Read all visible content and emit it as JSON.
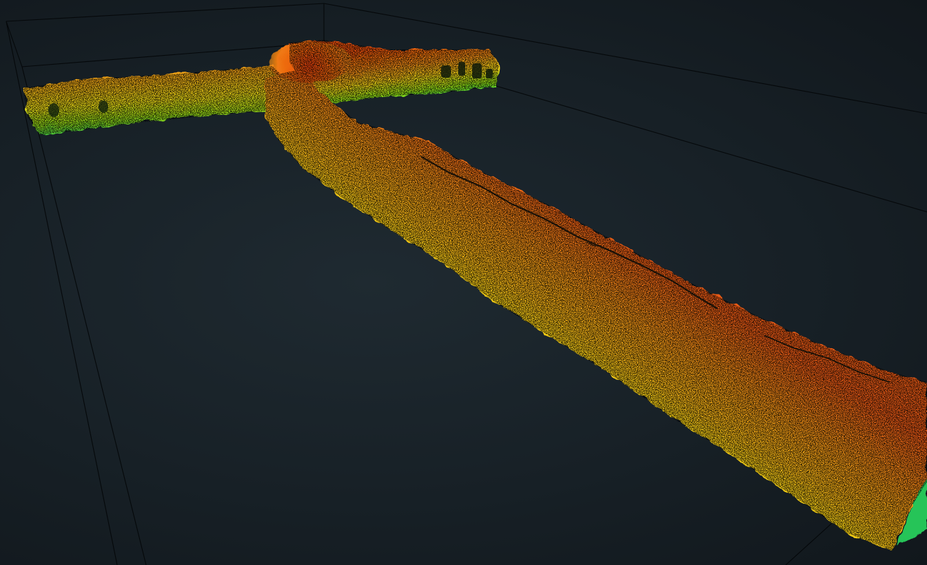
{
  "viewer": {
    "background": "#18232a",
    "bounding_box_color": "#05080a",
    "colormap": [
      "#10c860",
      "#7fe018",
      "#f0e010",
      "#f5a010",
      "#e85010"
    ]
  }
}
